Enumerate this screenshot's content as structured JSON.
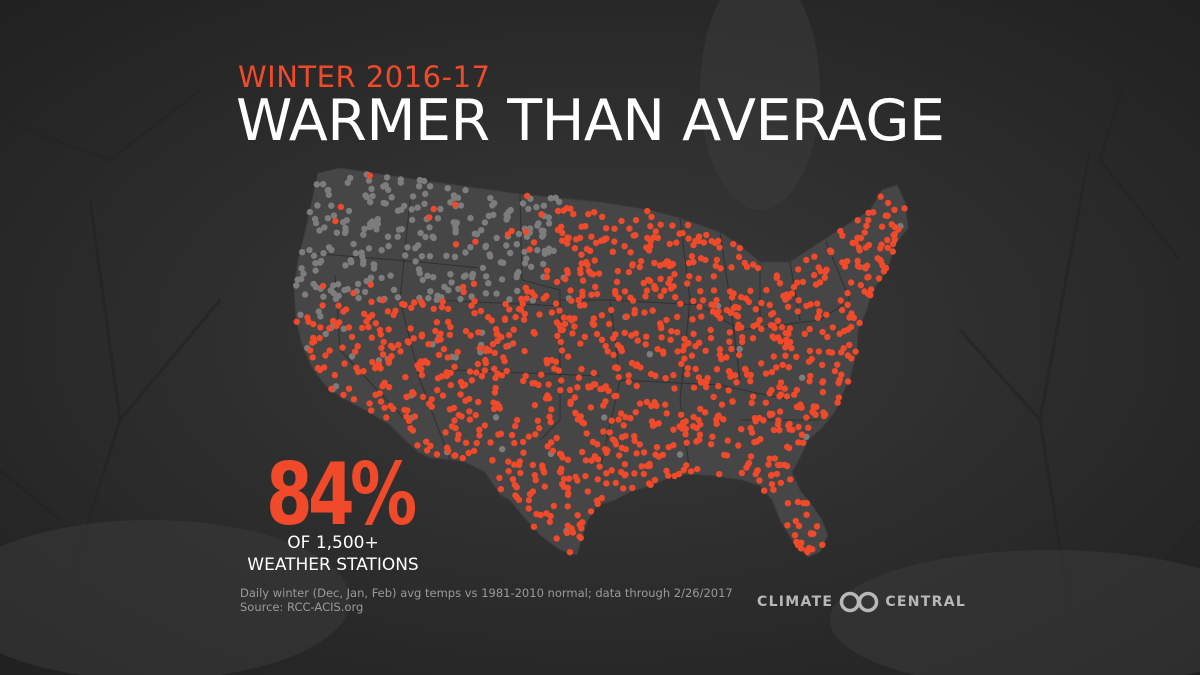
{
  "title": {
    "kicker": "WINTER 2016-17",
    "headline": "WARMER THAN AVERAGE"
  },
  "stat": {
    "percent": "84%",
    "line1": "OF 1,500+",
    "line2": "WEATHER STATIONS"
  },
  "footnote": {
    "line1": "Daily winter (Dec, Jan, Feb) avg temps vs 1981-2010 normal; data through 2/26/2017",
    "line2": "Source: RCC-ACIS.org"
  },
  "logo": {
    "left_word": "CLIMATE",
    "right_word": "CENTRAL",
    "icon": "climate-central-rings-icon"
  },
  "map": {
    "region": "Contiguous United States",
    "warm_share": 0.84,
    "colors": {
      "background": "#2e2e2e",
      "land": "#464646",
      "state_borders": "#2f2f2f",
      "warm_station": "#f04a2a",
      "other_station": "#7d7d7d"
    }
  }
}
